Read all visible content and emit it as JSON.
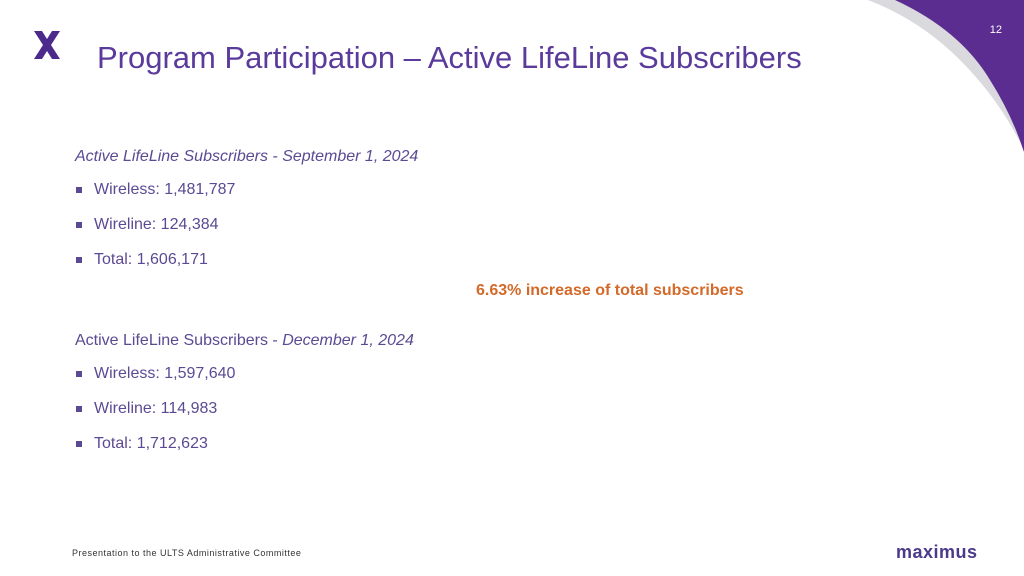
{
  "slide": {
    "page_number": "12",
    "title": "Program Participation – Active LifeLine Subscribers",
    "section1": {
      "heading": "Active LifeLine Subscribers - September 1, 2024",
      "items": [
        "Wireless: 1,481,787",
        "Wireline:  124,384",
        "Total: 1,606,171"
      ]
    },
    "highlight": "6.63% increase of total subscribers",
    "section2": {
      "heading_prefix": "Active LifeLine Subscribers - ",
      "heading_date": "December 1, 2024",
      "items": [
        "Wireless: 1,597,640",
        "Wireline:  114,983",
        "Total: 1,712,623"
      ]
    },
    "footer": "Presentation to the ULTS Administrative Committee",
    "brand": "maximus"
  },
  "colors": {
    "title": "#5a3a9a",
    "body_text": "#5b4a93",
    "highlight": "#d36a2a",
    "corner_purple": "#5b2d91",
    "corner_grey": "#d9d9de"
  },
  "icons": [
    "maximus-x-logo-icon",
    "square-bullet-icon"
  ]
}
